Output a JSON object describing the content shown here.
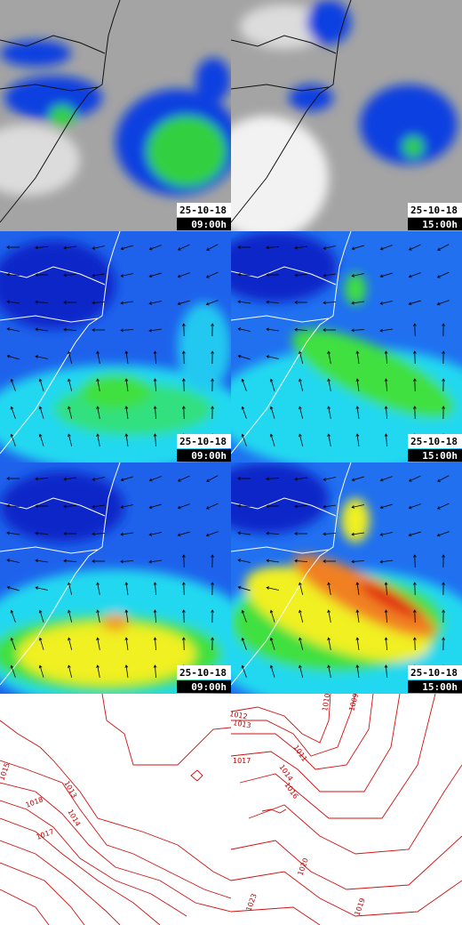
{
  "panels": [
    {
      "date": "25-10-18",
      "time": "09:00h"
    },
    {
      "date": "25-10-18",
      "time": "15:00h"
    },
    {
      "date": "25-10-18",
      "time": "09:00h"
    },
    {
      "date": "25-10-18",
      "time": "15:00h"
    },
    {
      "date": "25-10-18",
      "time": "09:00h"
    },
    {
      "date": "25-10-18",
      "time": "15:00h"
    }
  ],
  "isobars": {
    "left": [
      "1015",
      "1013",
      "1018",
      "1014",
      "1017"
    ],
    "right": [
      "1012",
      "1013",
      "1017",
      "1011",
      "1014",
      "1016",
      "1010",
      "1009",
      "1020",
      "1023",
      "1019"
    ]
  }
}
